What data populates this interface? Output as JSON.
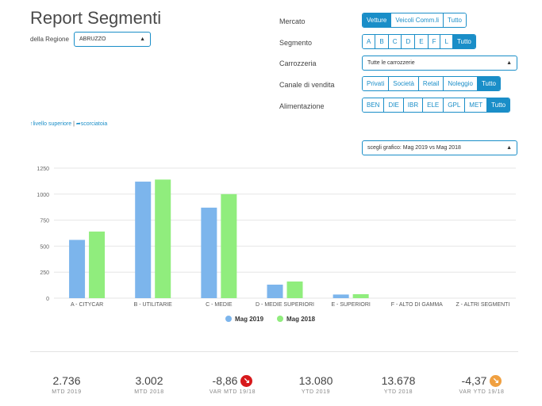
{
  "title": "Report Segmenti",
  "region": {
    "label": "della Regione",
    "value": "ABRUZZO"
  },
  "filters": {
    "mercato": {
      "label": "Mercato",
      "options": [
        "Vetture",
        "Veicoli Comm.li",
        "Tutto"
      ],
      "active": 0
    },
    "segmento": {
      "label": "Segmento",
      "options": [
        "A",
        "B",
        "C",
        "D",
        "E",
        "F",
        "L",
        "Tutto"
      ],
      "active": 7
    },
    "carrozzeria": {
      "label": "Carrozzeria",
      "value": "Tutte le carrozzerie"
    },
    "canale": {
      "label": "Canale di vendita",
      "options": [
        "Privati",
        "Società",
        "Retail",
        "Noleggio",
        "Tutto"
      ],
      "active": 4
    },
    "alimentazione": {
      "label": "Alimentazione",
      "options": [
        "BEN",
        "DIE",
        "IBR",
        "ELE",
        "GPL",
        "MET",
        "Tutto"
      ],
      "active": 6
    }
  },
  "links": {
    "up": "livello superiore",
    "sep": "|",
    "shortcut": "scorciatoia"
  },
  "chart_selector": {
    "value": "scegli grafico: Mag 2019 vs Mag 2018"
  },
  "colors": {
    "accent": "#1a8ec8",
    "series1": "#7cb5ec",
    "series2": "#90ed7d",
    "red": "#d7191c",
    "orange": "#f0a040"
  },
  "chart_data": {
    "type": "bar",
    "categories": [
      "A - CITYCAR",
      "B - UTILITARIE",
      "C - MEDIE",
      "D - MEDIE SUPERIORI",
      "E - SUPERIORI",
      "F - ALTO DI GAMMA",
      "Z - ALTRI SEGMENTI"
    ],
    "series": [
      {
        "name": "Mag 2019",
        "values": [
          560,
          1120,
          870,
          130,
          35,
          0,
          0
        ]
      },
      {
        "name": "Mag 2018",
        "values": [
          640,
          1140,
          1000,
          160,
          38,
          0,
          0
        ]
      }
    ],
    "yticks": [
      0,
      250,
      500,
      750,
      1000,
      1250
    ],
    "ylim": [
      0,
      1250
    ],
    "grid": true,
    "legend": "bottom"
  },
  "kpis": [
    {
      "value": "2.736",
      "label": "MTD 2019"
    },
    {
      "value": "3.002",
      "label": "MTD 2018"
    },
    {
      "value": "-8,86",
      "label": "VAR MTD 19/18",
      "badge": "red"
    },
    {
      "value": "13.080",
      "label": "YTD 2019"
    },
    {
      "value": "13.678",
      "label": "YTD 2018"
    },
    {
      "value": "-4,37",
      "label": "VAR YTD 19/18",
      "badge": "orange"
    }
  ]
}
